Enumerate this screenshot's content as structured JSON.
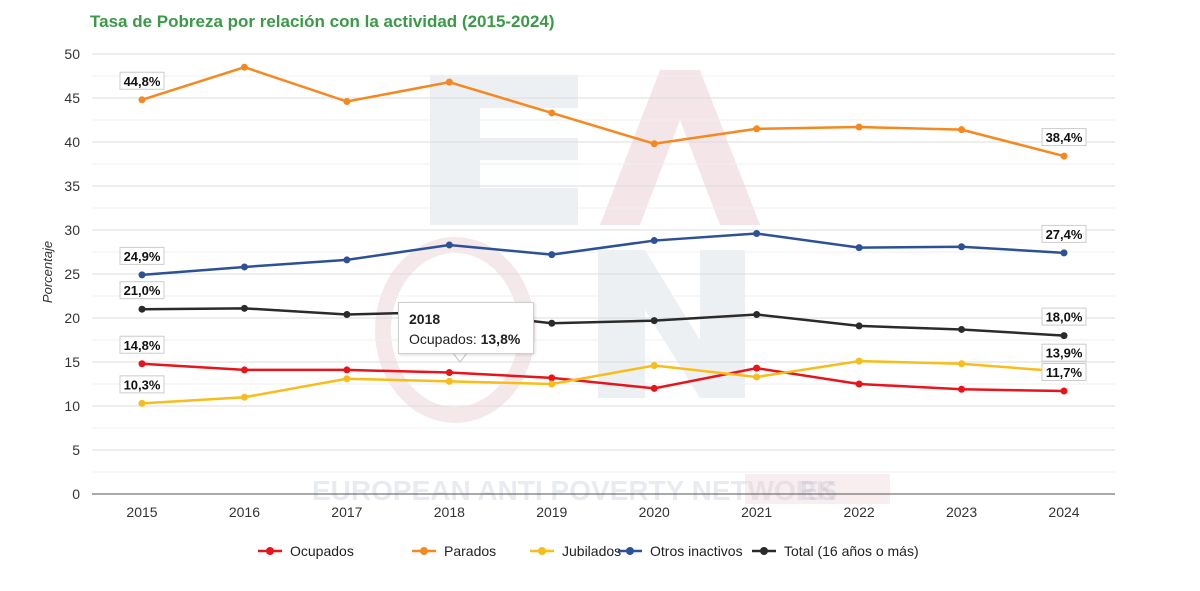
{
  "chart_data": {
    "type": "line",
    "title": "Tasa de Pobreza por relación con la actividad (2015-2024)",
    "xlabel": "",
    "ylabel": "Porcentaje",
    "ylim": [
      0,
      50
    ],
    "yticks": [
      "0",
      "5",
      "10",
      "15",
      "20",
      "25",
      "30",
      "35",
      "40",
      "45",
      "50"
    ],
    "categories": [
      "2015",
      "2016",
      "2017",
      "2018",
      "2019",
      "2020",
      "2021",
      "2022",
      "2023",
      "2024"
    ],
    "grid": true,
    "legend_position": "bottom",
    "series": [
      {
        "name": "Ocupados",
        "color": "#e8141b",
        "values": [
          14.8,
          14.1,
          14.1,
          13.8,
          13.2,
          12.0,
          14.3,
          12.5,
          11.9,
          11.7
        ],
        "labels": [
          "14,8%",
          "",
          "",
          "",
          "",
          "",
          "",
          "",
          "",
          "11,7%"
        ]
      },
      {
        "name": "Parados",
        "color": "#f5881f",
        "values": [
          44.8,
          48.5,
          44.6,
          46.8,
          43.3,
          39.8,
          41.5,
          41.7,
          41.4,
          38.4
        ],
        "labels": [
          "44,8%",
          "",
          "",
          "",
          "",
          "",
          "",
          "",
          "",
          "38,4%"
        ]
      },
      {
        "name": "Jubilados",
        "color": "#f7bd1a",
        "values": [
          10.3,
          11.0,
          13.1,
          12.8,
          12.5,
          14.6,
          13.3,
          15.1,
          14.8,
          13.9
        ],
        "labels": [
          "10,3%",
          "",
          "",
          "",
          "",
          "",
          "",
          "",
          "",
          "13,9%"
        ]
      },
      {
        "name": "Otros inactivos",
        "color": "#2d5197",
        "values": [
          24.9,
          25.8,
          26.6,
          28.3,
          27.2,
          28.8,
          29.6,
          28.0,
          28.1,
          27.4
        ],
        "labels": [
          "24,9%",
          "",
          "",
          "",
          "",
          "",
          "",
          "",
          "",
          "27,4%"
        ]
      },
      {
        "name": "Total (16 años o más)",
        "color": "#2b2b2b",
        "values": [
          21.0,
          21.1,
          20.4,
          20.7,
          19.4,
          19.7,
          20.4,
          19.1,
          18.7,
          18.0
        ],
        "labels": [
          "21,0%",
          "",
          "",
          "",
          "",
          "",
          "",
          "",
          "",
          "18,0%"
        ]
      }
    ],
    "tooltip": {
      "year": "2018",
      "series": "Ocupados",
      "value": "13,8%"
    },
    "watermark": {
      "text": "EUROPEAN ANTI POVERTY NETWORK",
      "badge": "ES",
      "letters": "EAPN"
    }
  }
}
